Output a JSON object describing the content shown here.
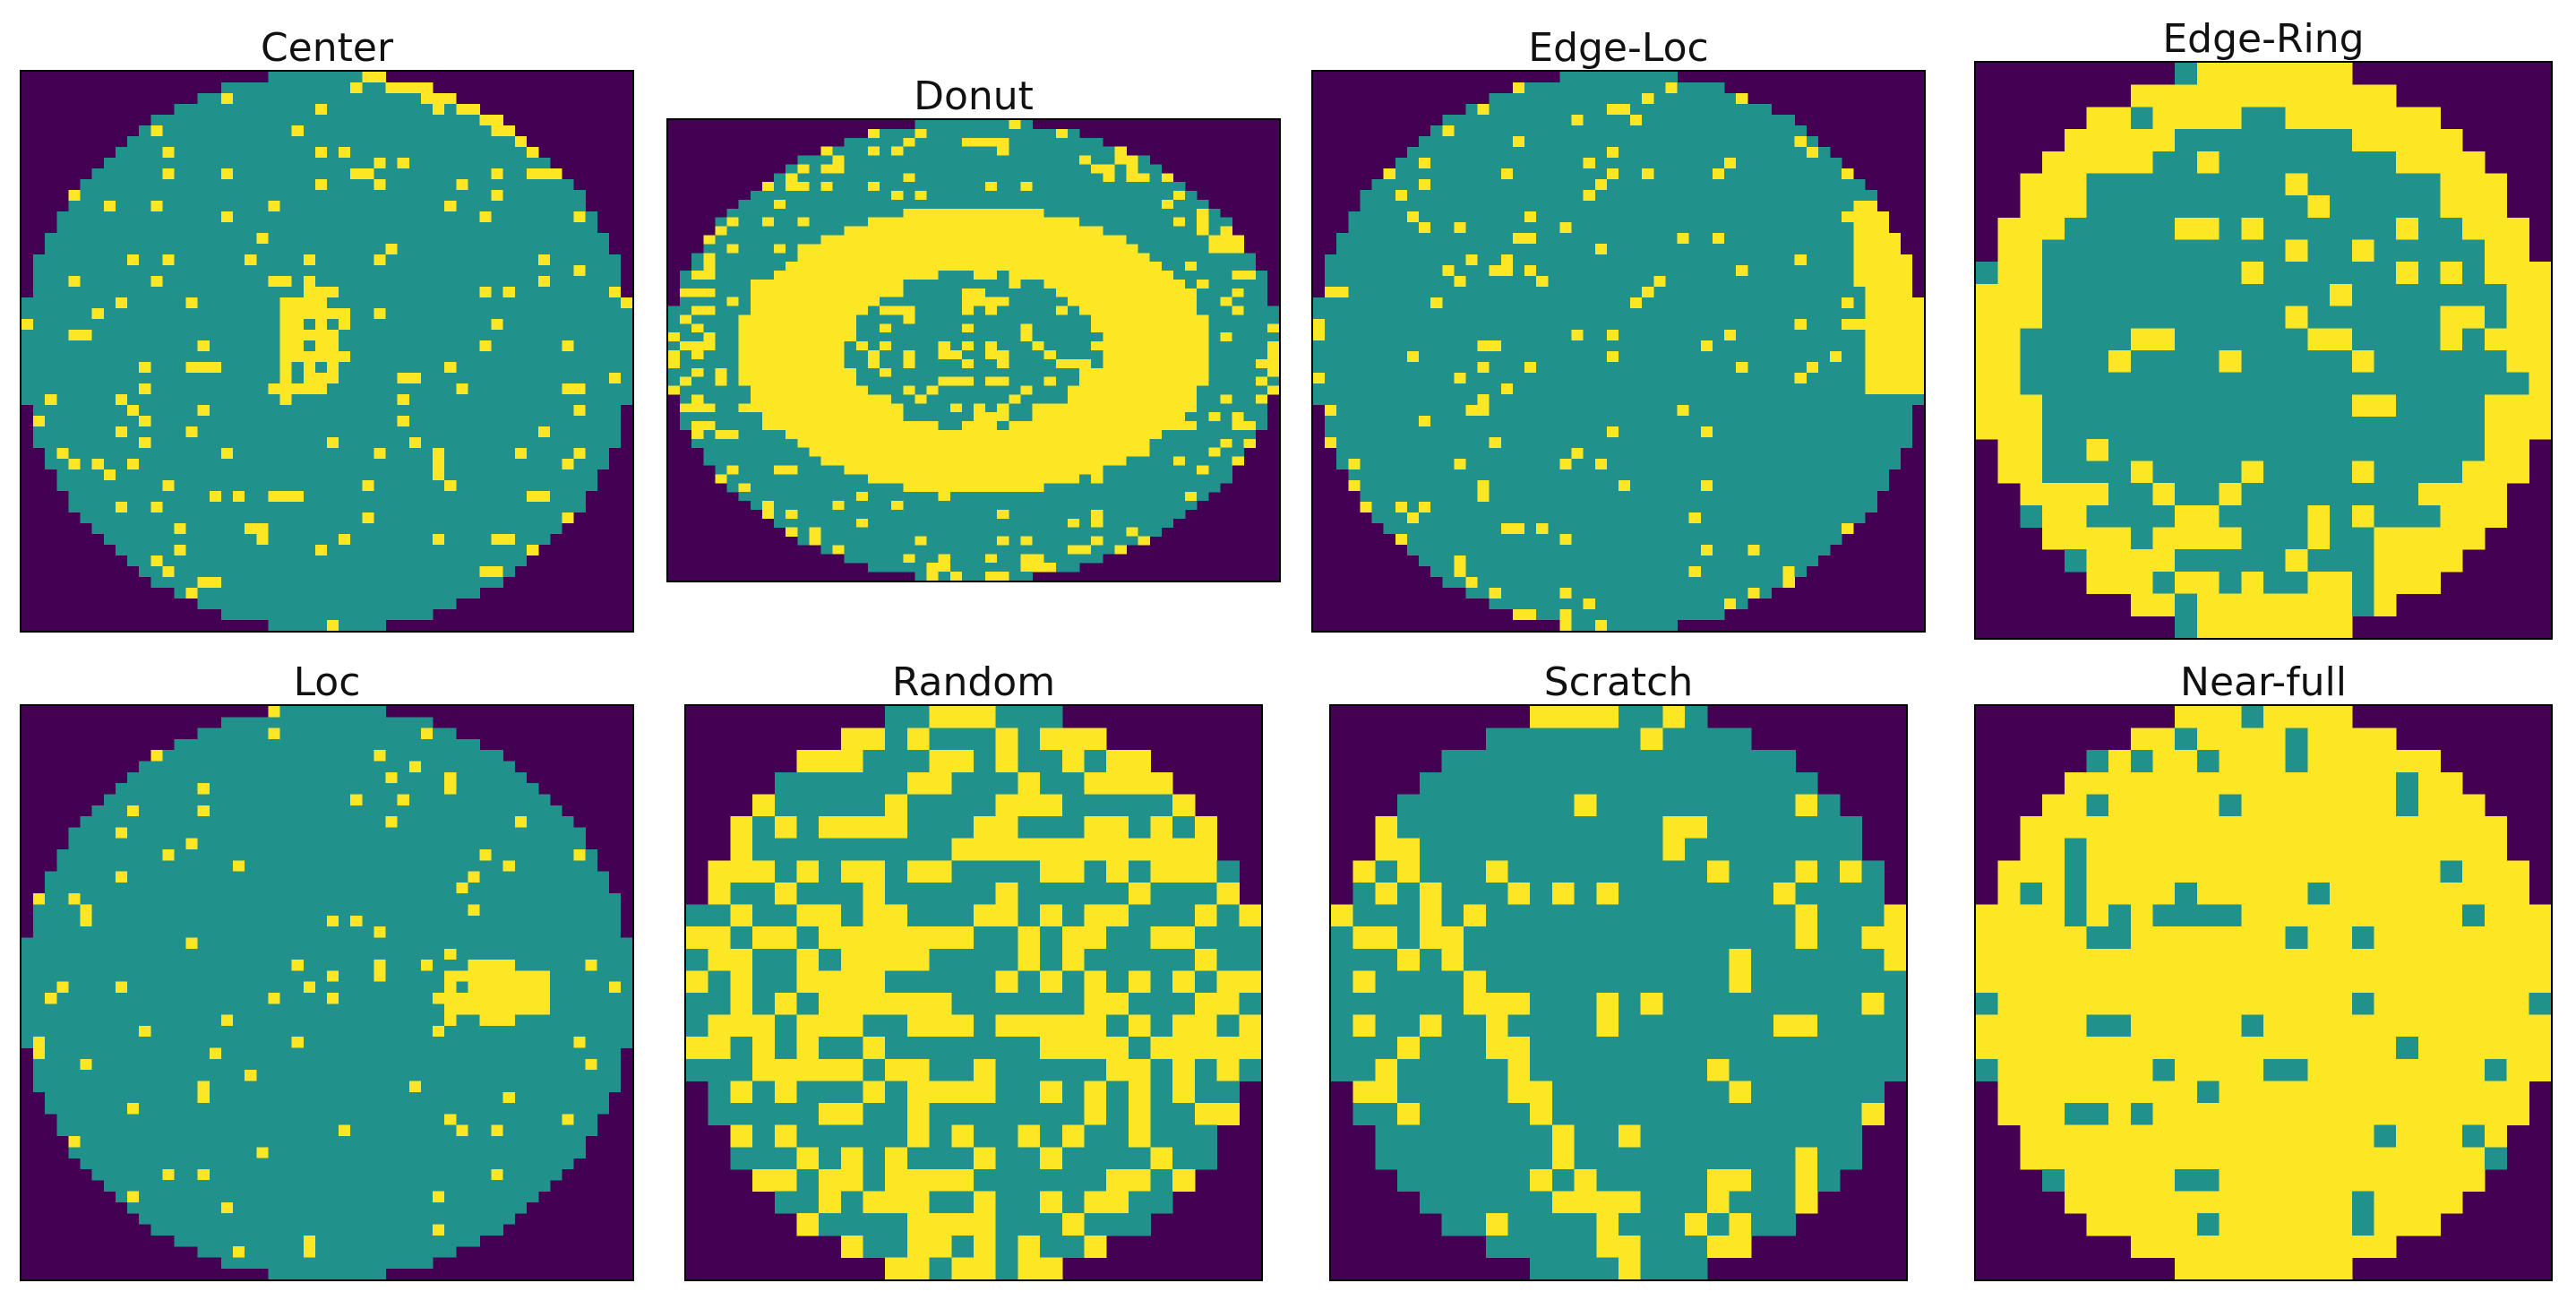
{
  "colors": {
    "outside": "#440154",
    "normal": "#21918c",
    "defect": "#fde725"
  },
  "panels": [
    {
      "title": "Center",
      "pattern": "center",
      "grid": 52,
      "seed": 11
    },
    {
      "title": "Donut",
      "pattern": "donut",
      "grid": 52,
      "seed": 23
    },
    {
      "title": "Edge-Loc",
      "pattern": "edge-loc",
      "grid": 52,
      "seed": 37
    },
    {
      "title": "Edge-Ring",
      "pattern": "edge-ring",
      "grid": 26,
      "seed": 41
    },
    {
      "title": "Loc",
      "pattern": "loc",
      "grid": 52,
      "seed": 53
    },
    {
      "title": "Random",
      "pattern": "random",
      "grid": 26,
      "seed": 67
    },
    {
      "title": "Scratch",
      "pattern": "scratch",
      "grid": 26,
      "seed": 71
    },
    {
      "title": "Near-full",
      "pattern": "near-full",
      "grid": 26,
      "seed": 89
    }
  ]
}
